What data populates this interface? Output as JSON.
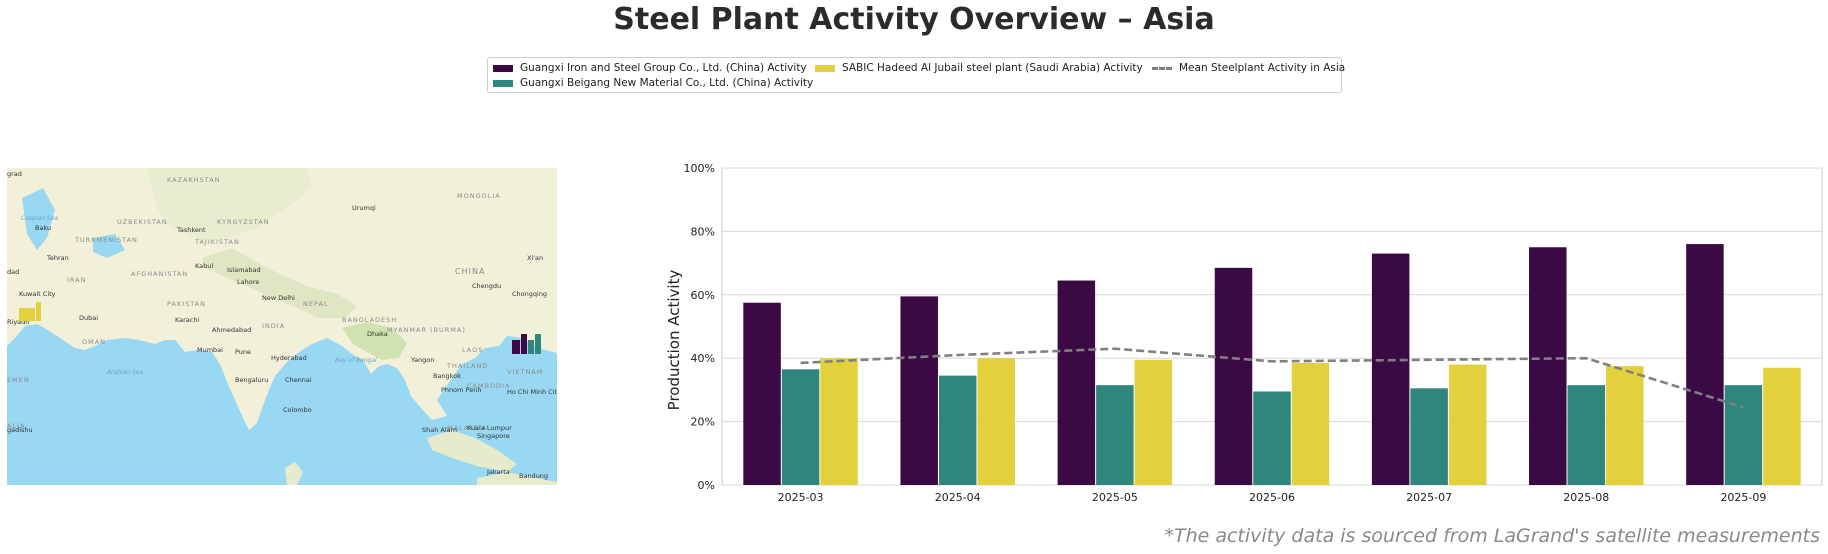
{
  "title": "Steel Plant Activity Overview – Asia",
  "footnote": "*The activity data is sourced from LaGrand's satellite measurements",
  "legend": [
    {
      "label": "Guangxi Iron and Steel Group Co., Ltd. (China) Activity",
      "color": "#3b0a45",
      "kind": "bar"
    },
    {
      "label": "Guangxi Beigang New Material Co., Ltd. (China) Activity",
      "color": "#2e867d",
      "kind": "bar"
    },
    {
      "label": "SABIC Hadeed Al Jubail steel plant (Saudi Arabia) Activity",
      "color": "#e2d13c",
      "kind": "bar"
    },
    {
      "label": "Mean Steelplant Activity in Asia",
      "color": "#808080",
      "kind": "line"
    }
  ],
  "map": {
    "labels": {
      "kazakhstan": "KAZAKHSTAN",
      "mongolia": "MONGOLIA",
      "uzbekistan": "UZBEKISTAN",
      "kyrgyzstan": "KYRGYZSTAN",
      "turkmenistan": "TURKMENISTAN",
      "tajikistan": "TAJIKISTAN",
      "afghanistan": "AFGHANISTAN",
      "iran": "IRAN",
      "pakistan": "PAKISTAN",
      "india": "INDIA",
      "nepal": "NEPAL",
      "china": "CHINA",
      "bangladesh": "BANGLADESH",
      "myanmar": "MYANMAR (BURMA)",
      "laos": "LAOS",
      "thailand": "THAILAND",
      "cambodia": "CAMBODIA",
      "vietnam": "VIETNAM",
      "oman": "OMAN",
      "malaysia": "MALAYSIA",
      "caspian": "Caspian Sea",
      "arabian_sea": "Arabian Sea",
      "bay_of_bengal": "Bay of Bengal",
      "grad": "grad",
      "baku": "Baku",
      "tashkent": "Tashkent",
      "urumqi": "Urumqi",
      "tehran": "Tehran",
      "kabul": "Kabul",
      "islamabad": "Islamabad",
      "baghdad": "dad",
      "lahore": "Lahore",
      "chengdu": "Chengdu",
      "chongqing": "Chongqing",
      "xian": "Xi'an",
      "new_delhi": "New Delhi",
      "kuwait_city": "Kuwait City",
      "riyadh": "Riyadh",
      "dubai": "Dubai",
      "karachi": "Karachi",
      "ahmedabad": "Ahmedabad",
      "dhaka": "Dhaka",
      "mumbai": "Mumbai",
      "pune": "Pune",
      "hyderabad": "Hyderabad",
      "yangon": "Yangon",
      "bangalore": "Bengaluru",
      "chennai": "Chennai",
      "bangkok": "Bangkok",
      "phnom_penh": "Phnom Penh",
      "ho_chi_minh": "Ho Chi Minh City",
      "colombo": "Colombo",
      "kuala_lumpur": "Kuala Lumpur",
      "singapore": "Singapore",
      "shah_alam": "Shah Alam",
      "jakarta": "Jakarta",
      "bandung": "Bandung",
      "yemen": "EMEN",
      "somalia": "ALIA",
      "mogadishu": "gadishu"
    }
  },
  "chart_data": {
    "type": "bar",
    "ylabel": "Production Activity",
    "ylim": [
      0,
      100
    ],
    "yticks": [
      "0%",
      "20%",
      "40%",
      "60%",
      "80%",
      "100%"
    ],
    "grid": true,
    "categories": [
      "2025-03",
      "2025-04",
      "2025-05",
      "2025-06",
      "2025-07",
      "2025-08",
      "2025-09"
    ],
    "series": [
      {
        "name": "Guangxi Iron and Steel Group Co., Ltd. (China) Activity",
        "color": "#3b0a45",
        "values": [
          57.5,
          59.5,
          64.5,
          68.5,
          73,
          75,
          76
        ]
      },
      {
        "name": "Guangxi Beigang New Material Co., Ltd. (China) Activity",
        "color": "#2e867d",
        "values": [
          36.5,
          34.5,
          31.5,
          29.5,
          30.5,
          31.5,
          31.5
        ]
      },
      {
        "name": "SABIC Hadeed Al Jubail steel plant (Saudi Arabia) Activity",
        "color": "#e2d13c",
        "values": [
          40,
          40,
          39.5,
          38.5,
          38,
          37.5,
          37
        ]
      }
    ],
    "line": {
      "name": "Mean Steelplant Activity in Asia",
      "color": "#808080",
      "values": [
        38.5,
        41,
        43,
        39,
        39.5,
        40,
        24.5
      ]
    }
  }
}
